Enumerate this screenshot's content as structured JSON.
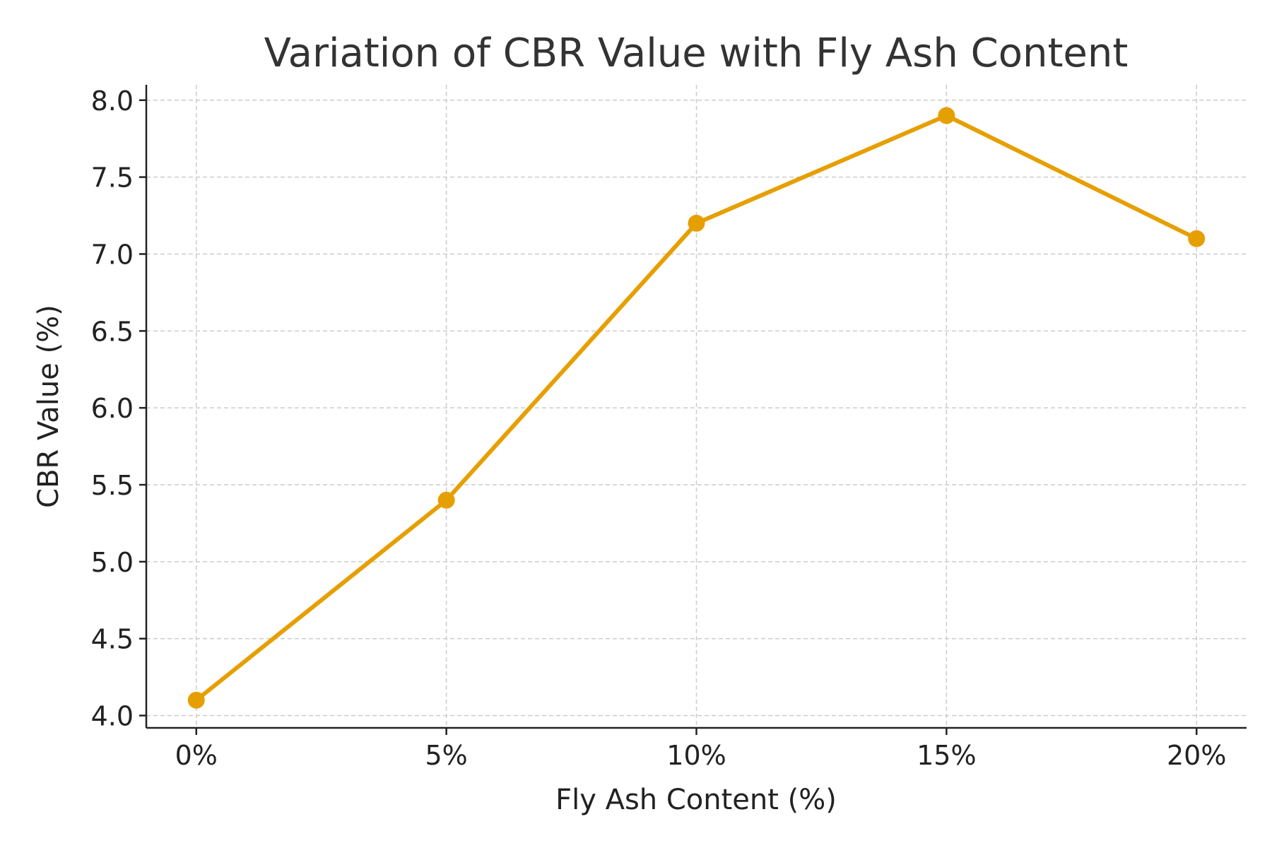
{
  "chart_data": {
    "type": "line",
    "title": "Variation of CBR Value with Fly Ash Content",
    "xlabel": "Fly Ash Content (%)",
    "ylabel": "CBR Value (%)",
    "categories": [
      "0%",
      "5%",
      "10%",
      "15%",
      "20%"
    ],
    "x": [
      0,
      5,
      10,
      15,
      20
    ],
    "series": [
      {
        "values": [
          4.1,
          5.4,
          7.2,
          7.9,
          7.1
        ],
        "color": "#E69F00",
        "marker": "circle"
      }
    ],
    "xlim": [
      -1,
      21
    ],
    "ylim": [
      3.92,
      8.1
    ],
    "yticks": [
      4.0,
      4.5,
      5.0,
      5.5,
      6.0,
      6.5,
      7.0,
      7.5,
      8.0
    ],
    "ytick_labels": [
      "4.0",
      "4.5",
      "5.0",
      "5.5",
      "6.0",
      "6.5",
      "7.0",
      "7.5",
      "8.0"
    ],
    "grid": true,
    "legend": "none"
  }
}
